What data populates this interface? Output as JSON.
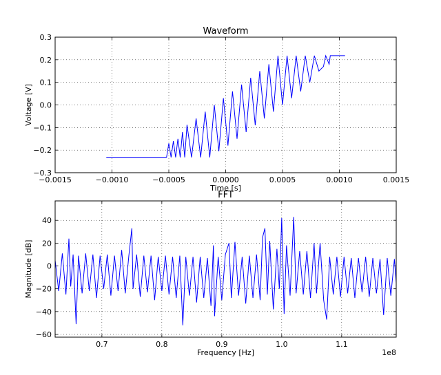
{
  "chart_data": [
    {
      "type": "line",
      "title": "Waveform",
      "xlabel": "Time [s]",
      "ylabel": "Voltage [V]",
      "color": "#0000ff",
      "grid": true,
      "xlim": [
        -0.0015,
        0.0015
      ],
      "ylim": [
        -0.3,
        0.3
      ],
      "xticks": [
        {
          "value": -0.0015,
          "label": "−0.0015"
        },
        {
          "value": -0.001,
          "label": "−0.0010"
        },
        {
          "value": -0.0005,
          "label": "−0.0005"
        },
        {
          "value": 0,
          "label": "0.0000"
        },
        {
          "value": 0.0005,
          "label": "0.0005"
        },
        {
          "value": 0.001,
          "label": "0.0010"
        },
        {
          "value": 0.0015,
          "label": "0.0015"
        }
      ],
      "yticks": [
        0.3,
        0.2,
        0.1,
        {
          "value": 0,
          "label": "0.0"
        },
        {
          "value": -0.1,
          "label": "−0.1"
        },
        {
          "value": -0.2,
          "label": "−0.2"
        },
        {
          "value": -0.3,
          "label": "−0.3"
        }
      ],
      "x": [
        -0.00105,
        -0.00052,
        -0.0005,
        -0.00048,
        -0.00046,
        -0.00044,
        -0.00042,
        -0.0004,
        -0.00038,
        -0.00036,
        -0.00034,
        -0.0003,
        -0.00026,
        -0.00022,
        -0.00018,
        -0.00014,
        -0.0001,
        -6e-05,
        -2e-05,
        2e-05,
        6e-05,
        0.0001,
        0.00014,
        0.00018,
        0.00022,
        0.00026,
        0.0003,
        0.00034,
        0.00038,
        0.00042,
        0.00046,
        0.0005,
        0.00054,
        0.00058,
        0.00062,
        0.00066,
        0.0007,
        0.00074,
        0.00078,
        0.00082,
        0.00086,
        0.00088,
        0.00091,
        0.00092,
        0.00105
      ],
      "values": [
        -0.232,
        -0.232,
        -0.17,
        -0.232,
        -0.16,
        -0.232,
        -0.15,
        -0.232,
        -0.12,
        -0.232,
        -0.088,
        -0.232,
        -0.06,
        -0.232,
        -0.03,
        -0.232,
        0.0,
        -0.205,
        0.03,
        -0.18,
        0.06,
        -0.15,
        0.09,
        -0.12,
        0.12,
        -0.09,
        0.15,
        -0.06,
        0.18,
        -0.03,
        0.218,
        0.0,
        0.218,
        0.03,
        0.218,
        0.06,
        0.218,
        0.1,
        0.218,
        0.15,
        0.17,
        0.218,
        0.18,
        0.218,
        0.218
      ]
    },
    {
      "type": "line",
      "title": "FFT",
      "xlabel": "Frequency [Hz]",
      "ylabel": "Magnitude [dB]",
      "x_offset_label": "1e8",
      "color": "#0000ff",
      "grid": true,
      "xlim": [
        0.622,
        1.191
      ],
      "ylim": [
        -62.4,
        57
      ],
      "xticks": [
        0.7,
        0.8,
        0.9,
        {
          "value": 1.0,
          "label": "1.0"
        },
        1.1
      ],
      "yticks": [
        40,
        20,
        0,
        {
          "value": -20,
          "label": "−20"
        },
        {
          "value": -40,
          "label": "−40"
        },
        {
          "value": -60,
          "label": "−60"
        }
      ],
      "x": [
        0.622,
        0.628,
        0.634,
        0.64,
        0.645,
        0.648,
        0.652,
        0.657,
        0.661,
        0.667,
        0.673,
        0.679,
        0.685,
        0.691,
        0.697,
        0.703,
        0.709,
        0.715,
        0.721,
        0.727,
        0.733,
        0.739,
        0.745,
        0.75,
        0.752,
        0.758,
        0.764,
        0.77,
        0.776,
        0.782,
        0.788,
        0.794,
        0.8,
        0.806,
        0.812,
        0.818,
        0.824,
        0.83,
        0.835,
        0.84,
        0.846,
        0.852,
        0.858,
        0.864,
        0.87,
        0.876,
        0.882,
        0.886,
        0.888,
        0.894,
        0.9,
        0.906,
        0.912,
        0.916,
        0.922,
        0.928,
        0.934,
        0.94,
        0.946,
        0.952,
        0.958,
        0.964,
        0.968,
        0.972,
        0.976,
        0.98,
        0.986,
        0.992,
        0.996,
        1.0,
        1.004,
        1.008,
        1.014,
        1.02,
        1.024,
        1.03,
        1.036,
        1.042,
        1.048,
        1.054,
        1.058,
        1.064,
        1.07,
        1.075,
        1.08,
        1.086,
        1.092,
        1.098,
        1.104,
        1.11,
        1.116,
        1.122,
        1.128,
        1.134,
        1.14,
        1.146,
        1.152,
        1.158,
        1.164,
        1.17,
        1.176,
        1.182,
        1.188,
        1.191
      ],
      "values": [
        5,
        -22,
        11,
        -25,
        24,
        -18,
        10,
        -51,
        9,
        -24,
        11,
        -22,
        10,
        -28,
        9,
        -20,
        10,
        -26,
        9,
        -22,
        14,
        -24,
        9,
        33,
        -20,
        10,
        -27,
        9,
        -23,
        9,
        -30,
        8,
        -22,
        9,
        -25,
        8,
        -28,
        9,
        -52,
        8,
        -26,
        8,
        -32,
        8,
        -28,
        7,
        -35,
        18,
        -44,
        8,
        -30,
        10,
        20,
        -28,
        21,
        -26,
        8,
        -33,
        9,
        -28,
        10,
        -30,
        25,
        33,
        -25,
        22,
        -38,
        15,
        -20,
        42,
        -42,
        18,
        -26,
        43,
        -24,
        13,
        -25,
        13,
        -28,
        20,
        -24,
        20,
        -30,
        -47,
        8,
        -25,
        8,
        -27,
        8,
        -24,
        7,
        -28,
        7,
        -23,
        8,
        -27,
        7,
        -24,
        6,
        -43,
        7,
        -26,
        6,
        -15
      ]
    }
  ]
}
